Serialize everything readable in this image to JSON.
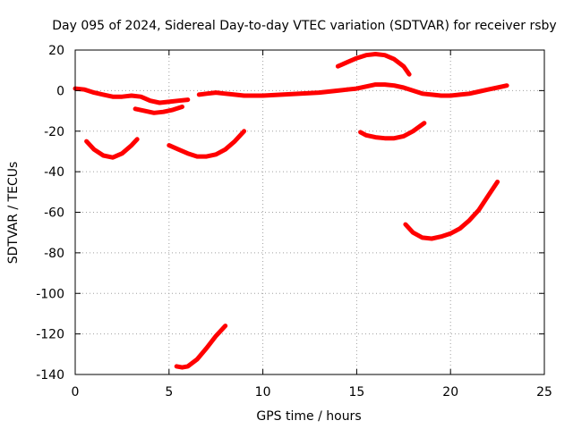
{
  "chart_data": {
    "type": "line",
    "title": "Day 095 of 2024, Sidereal Day-to-day VTEC variation (SDTVAR) for receiver rsby",
    "xlabel": "GPS time / hours",
    "ylabel": "SDTVAR / TECUs",
    "xlim": [
      0,
      25
    ],
    "ylim": [
      -140,
      20
    ],
    "xticks": [
      0,
      5,
      10,
      15,
      20,
      25
    ],
    "yticks": [
      20,
      0,
      -20,
      -40,
      -60,
      -80,
      -100,
      -120,
      -140
    ],
    "grid": true,
    "legend": "none",
    "color": "#ff0000",
    "series": [
      {
        "name": "arc-near-zero-1",
        "x": [
          0,
          0.5,
          1,
          1.5,
          2,
          2.5,
          3,
          3.5,
          4,
          4.5,
          5,
          5.5,
          6
        ],
        "y": [
          1,
          0.5,
          -1,
          -2,
          -3,
          -3,
          -2.5,
          -3,
          -5,
          -6,
          -5.5,
          -5,
          -4.5
        ]
      },
      {
        "name": "arc-lower-1",
        "x": [
          3.2,
          3.7,
          4.2,
          4.7,
          5.2,
          5.7
        ],
        "y": [
          -9,
          -10,
          -11,
          -10.5,
          -9.5,
          -8
        ]
      },
      {
        "name": "arc-near-zero-2",
        "x": [
          6.6,
          7,
          7.5,
          8,
          8.5,
          9,
          10,
          11,
          12,
          13,
          14,
          14.5
        ],
        "y": [
          -2,
          -1.5,
          -1,
          -1.5,
          -2,
          -2.5,
          -2.5,
          -2,
          -1.5,
          -1,
          0,
          0.5
        ]
      },
      {
        "name": "arc-near-zero-3",
        "x": [
          14.5,
          15,
          15.5,
          16,
          16.5,
          17,
          17.5,
          18,
          18.5,
          19,
          19.5,
          20,
          20.5,
          21,
          21.5,
          22,
          22.5,
          23
        ],
        "y": [
          0.5,
          1,
          2,
          3,
          3,
          2.5,
          1.5,
          0,
          -1.5,
          -2,
          -2.5,
          -2.5,
          -2,
          -1.5,
          -0.5,
          0.5,
          1.5,
          2.5
        ]
      },
      {
        "name": "arc-top",
        "x": [
          14,
          14.5,
          15,
          15.5,
          16,
          16.5,
          17,
          17.5,
          17.8
        ],
        "y": [
          12,
          14,
          16,
          17.5,
          18,
          17.5,
          15.5,
          12,
          8
        ]
      },
      {
        "name": "arc-a",
        "x": [
          0.6,
          1,
          1.5,
          2,
          2.5,
          3,
          3.3
        ],
        "y": [
          -25,
          -29,
          -32,
          -33,
          -31,
          -27,
          -24
        ]
      },
      {
        "name": "arc-b",
        "x": [
          5,
          5.5,
          6,
          6.5,
          7,
          7.5,
          8,
          8.5,
          9
        ],
        "y": [
          -27,
          -29,
          -31,
          -32.5,
          -32.5,
          -31.5,
          -29,
          -25,
          -20
        ]
      },
      {
        "name": "arc-c",
        "x": [
          15.2,
          15.5,
          16,
          16.5,
          17,
          17.5,
          18,
          18.6
        ],
        "y": [
          -20.5,
          -22,
          -23,
          -23.5,
          -23.5,
          -22.5,
          -20,
          -16
        ]
      },
      {
        "name": "arc-d",
        "x": [
          17.6,
          18,
          18.5,
          19,
          19.5,
          20,
          20.5,
          21,
          21.5,
          22,
          22.5
        ],
        "y": [
          -66,
          -70,
          -72.5,
          -73,
          -72,
          -70.5,
          -68,
          -64,
          -59,
          -52,
          -45
        ]
      },
      {
        "name": "arc-e",
        "x": [
          5.4,
          5.7,
          6,
          6.5,
          7,
          7.5,
          8
        ],
        "y": [
          -136,
          -136.5,
          -136,
          -132.5,
          -127,
          -121,
          -116
        ]
      }
    ]
  }
}
